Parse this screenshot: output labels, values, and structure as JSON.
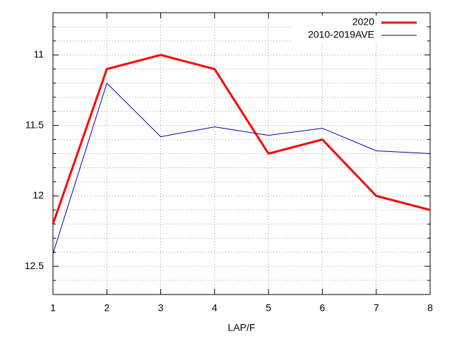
{
  "chart_data": {
    "type": "line",
    "x_label": "LAP/F",
    "x": [
      1,
      2,
      3,
      4,
      5,
      6,
      7,
      8
    ],
    "xlim": [
      1,
      8
    ],
    "xticks": [
      1,
      2,
      3,
      4,
      5,
      6,
      7,
      8
    ],
    "ylim": [
      10.7,
      12.7
    ],
    "yticks": [
      11,
      11.5,
      12,
      12.5
    ],
    "y_minor_ticks": [
      10.8,
      10.9,
      11.1,
      11.2,
      11.3,
      11.4,
      11.6,
      11.7,
      11.8,
      11.9,
      12.1,
      12.2,
      12.3,
      12.4,
      12.6
    ],
    "yreverse": true,
    "grid": true,
    "legend": "top-right",
    "series": [
      {
        "name": "2020",
        "color": "#ff0000",
        "values": [
          12.2,
          11.1,
          11.0,
          11.1,
          11.7,
          11.6,
          12.0,
          12.1
        ]
      },
      {
        "name": "2010-2019AVE",
        "color": "#0000b0",
        "values": [
          12.41,
          11.2,
          11.58,
          11.51,
          11.57,
          11.52,
          11.68,
          11.7
        ]
      }
    ]
  }
}
